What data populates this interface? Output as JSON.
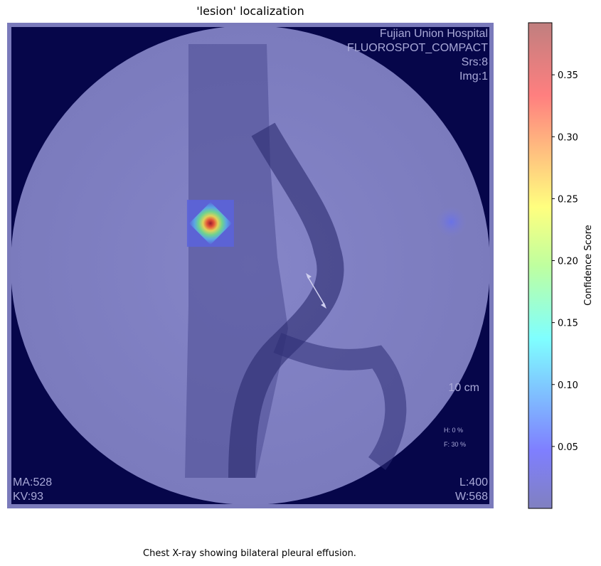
{
  "chart_data": {
    "type": "heatmap",
    "title": "'lesion' localization",
    "colorbar": {
      "label": "Confidence Score",
      "min": 0.0,
      "max": 0.392,
      "ticks": [
        0.05,
        0.1,
        0.15,
        0.2,
        0.25,
        0.3,
        0.35
      ],
      "tick_labels": [
        "0.05",
        "0.10",
        "0.15",
        "0.20",
        "0.25",
        "0.30",
        "0.35"
      ],
      "colormap": "jet",
      "alpha": 0.5
    },
    "image_overlay_text": {
      "top_right": [
        "Fujian Union Hospital",
        "FLUOROSPOT_COMPACT",
        "Srs:8",
        "Img:1"
      ],
      "bottom_left": [
        "MA:528",
        "KV:93"
      ],
      "bottom_right": [
        "L:400",
        "W:568"
      ],
      "scale": "10 cm",
      "small": [
        "H: 0 %",
        "F: 30 %"
      ]
    },
    "hotspots": [
      {
        "cx": 0.418,
        "cy": 0.413,
        "peak": 0.392
      },
      {
        "cx": 0.913,
        "cy": 0.41,
        "peak": 0.06
      }
    ],
    "grid": false
  },
  "caption": "Chest X-ray showing bilateral pleural effusion."
}
